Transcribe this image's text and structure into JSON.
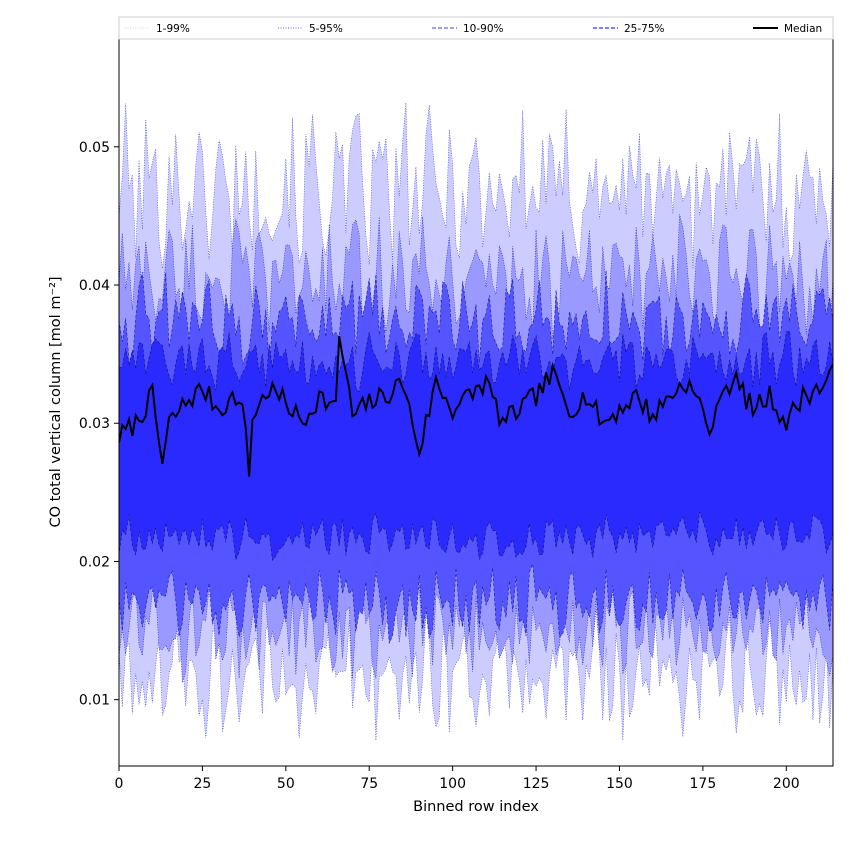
{
  "chart_data": {
    "type": "area",
    "xlabel": "Binned row index",
    "ylabel": "CO total vertical column [mol m⁻²]",
    "xlim": [
      0,
      214
    ],
    "ylim": [
      0.0052,
      0.0578
    ],
    "xticks": [
      0,
      25,
      50,
      75,
      100,
      125,
      150,
      175,
      200
    ],
    "yticks": [
      0.01,
      0.02,
      0.03,
      0.04,
      0.05
    ],
    "ytick_labels": [
      "0.01",
      "0.02",
      "0.03",
      "0.04",
      "0.05"
    ],
    "grid": false,
    "legend": {
      "placement": "top",
      "entries": [
        {
          "label": "1-99%",
          "color": "#d9d9ff",
          "style": "dotted"
        },
        {
          "label": "5-95%",
          "color": "#8080ff",
          "style": "dotted"
        },
        {
          "label": "10-90%",
          "color": "#6666ff",
          "style": "dashed"
        },
        {
          "label": "25-75%",
          "color": "#3333ff",
          "style": "dashed"
        },
        {
          "label": "Median",
          "color": "#000000",
          "style": "solid"
        }
      ]
    },
    "bands": [
      {
        "name": "1-99%",
        "lower_mean": 0.0118,
        "upper_mean": 0.047,
        "fill": "#ccccff"
      },
      {
        "name": "5-95%",
        "lower_mean": 0.0148,
        "upper_mean": 0.0405,
        "fill": "#9999ff"
      },
      {
        "name": "10-90%",
        "lower_mean": 0.017,
        "upper_mean": 0.0375,
        "fill": "#5555ff"
      },
      {
        "name": "25-75%",
        "lower_mean": 0.0218,
        "upper_mean": 0.0345,
        "fill": "#2a2aff"
      }
    ],
    "median": {
      "name": "Median",
      "x": [
        0,
        5,
        10,
        13,
        15,
        20,
        25,
        30,
        35,
        38,
        39,
        40,
        45,
        50,
        55,
        60,
        65,
        66,
        70,
        75,
        80,
        85,
        90,
        95,
        100,
        105,
        110,
        115,
        120,
        125,
        130,
        135,
        140,
        145,
        150,
        155,
        160,
        165,
        170,
        175,
        178,
        180,
        185,
        190,
        195,
        200,
        205,
        210,
        214
      ],
      "y": [
        0.029,
        0.03,
        0.032,
        0.027,
        0.03,
        0.0315,
        0.0325,
        0.031,
        0.032,
        0.03,
        0.026,
        0.0305,
        0.0325,
        0.0315,
        0.03,
        0.032,
        0.031,
        0.0365,
        0.0305,
        0.0315,
        0.032,
        0.033,
        0.028,
        0.033,
        0.031,
        0.032,
        0.033,
        0.03,
        0.031,
        0.032,
        0.0335,
        0.031,
        0.032,
        0.03,
        0.031,
        0.032,
        0.0305,
        0.032,
        0.033,
        0.031,
        0.029,
        0.0325,
        0.033,
        0.031,
        0.032,
        0.03,
        0.032,
        0.0325,
        0.0335
      ]
    }
  }
}
